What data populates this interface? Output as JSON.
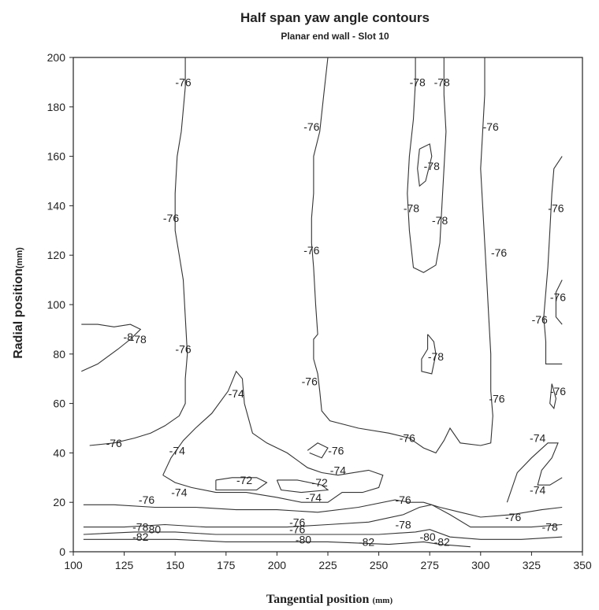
{
  "chart_data": {
    "type": "contour",
    "title": "Half span yaw angle contours",
    "subtitle": "Planar end wall - Slot 10",
    "xlabel_main": "Tangential position",
    "xlabel_unit": "(mm)",
    "ylabel_main": "Radial position",
    "ylabel_unit": "(mm)",
    "xlim": [
      100,
      350
    ],
    "ylim": [
      0,
      200
    ],
    "xticks": [
      100,
      125,
      150,
      175,
      200,
      225,
      250,
      275,
      300,
      325,
      350
    ],
    "yticks": [
      0,
      20,
      40,
      60,
      80,
      100,
      120,
      140,
      160,
      180,
      200
    ],
    "contour_labels": [
      {
        "text": "-76",
        "x": 154,
        "y": 190
      },
      {
        "text": "-76",
        "x": 148,
        "y": 135
      },
      {
        "text": "-76",
        "x": 154,
        "y": 82
      },
      {
        "text": "-76",
        "x": 120,
        "y": 44
      },
      {
        "text": "-74",
        "x": 180,
        "y": 64
      },
      {
        "text": "-74",
        "x": 151,
        "y": 41
      },
      {
        "text": "-74",
        "x": 152,
        "y": 24
      },
      {
        "text": "-72",
        "x": 184,
        "y": 29
      },
      {
        "text": "-72",
        "x": 221,
        "y": 28
      },
      {
        "text": "-74",
        "x": 218,
        "y": 22
      },
      {
        "text": "-74",
        "x": 230,
        "y": 33
      },
      {
        "text": "-76",
        "x": 229,
        "y": 41
      },
      {
        "text": "-76",
        "x": 217,
        "y": 172
      },
      {
        "text": "-76",
        "x": 217,
        "y": 122
      },
      {
        "text": "-76",
        "x": 216,
        "y": 69
      },
      {
        "text": "-78",
        "x": 269,
        "y": 190
      },
      {
        "text": "-78",
        "x": 281,
        "y": 190
      },
      {
        "text": "-78",
        "x": 276,
        "y": 156
      },
      {
        "text": "-78",
        "x": 266,
        "y": 139
      },
      {
        "text": "-78",
        "x": 280,
        "y": 134
      },
      {
        "text": "-78",
        "x": 278,
        "y": 79
      },
      {
        "text": "-76",
        "x": 305,
        "y": 172
      },
      {
        "text": "-76",
        "x": 309,
        "y": 121
      },
      {
        "text": "-76",
        "x": 308,
        "y": 62
      },
      {
        "text": "-76",
        "x": 337,
        "y": 139
      },
      {
        "text": "-76",
        "x": 338,
        "y": 103
      },
      {
        "text": "-76",
        "x": 329,
        "y": 94
      },
      {
        "text": "-76",
        "x": 338,
        "y": 65
      },
      {
        "text": "-76",
        "x": 264,
        "y": 46
      },
      {
        "text": "-74",
        "x": 328,
        "y": 46
      },
      {
        "text": "-74",
        "x": 328,
        "y": 25
      },
      {
        "text": "-76",
        "x": 136,
        "y": 21
      },
      {
        "text": "-76",
        "x": 262,
        "y": 21
      },
      {
        "text": "-76",
        "x": 210,
        "y": 12
      },
      {
        "text": "-78",
        "x": 262,
        "y": 11
      },
      {
        "text": "-78",
        "x": 133,
        "y": 10
      },
      {
        "text": "80",
        "x": 140,
        "y": 9
      },
      {
        "text": "-78",
        "x": 334,
        "y": 10
      },
      {
        "text": "-76",
        "x": 316,
        "y": 14
      },
      {
        "text": "-76",
        "x": 210,
        "y": 9
      },
      {
        "text": "-80",
        "x": 213,
        "y": 5
      },
      {
        "text": "-80",
        "x": 274,
        "y": 6
      },
      {
        "text": "-82",
        "x": 281,
        "y": 4
      },
      {
        "text": "-82",
        "x": 244,
        "y": 4
      },
      {
        "text": "-8",
        "x": 127,
        "y": 87
      },
      {
        "text": "-78",
        "x": 132,
        "y": 86
      },
      {
        "text": "-82",
        "x": 133,
        "y": 6
      }
    ],
    "contour_lines": [
      {
        "level": -76,
        "points": [
          [
            155,
            200
          ],
          [
            155,
            188
          ],
          [
            153,
            170
          ],
          [
            151,
            160
          ],
          [
            150,
            145
          ],
          [
            150,
            130
          ],
          [
            152,
            120
          ],
          [
            154,
            110
          ],
          [
            155,
            95
          ],
          [
            156,
            80
          ],
          [
            155,
            70
          ],
          [
            155,
            60
          ],
          [
            152,
            55
          ],
          [
            145,
            51
          ],
          [
            138,
            48
          ],
          [
            130,
            46
          ],
          [
            120,
            44
          ],
          [
            108,
            43
          ]
        ]
      },
      {
        "level": -76,
        "points": [
          [
            225,
            200
          ],
          [
            223,
            185
          ],
          [
            221,
            170
          ],
          [
            218,
            160
          ],
          [
            218,
            145
          ],
          [
            217,
            135
          ],
          [
            217,
            125
          ],
          [
            218,
            115
          ],
          [
            219,
            100
          ],
          [
            220,
            88
          ],
          [
            218,
            86
          ],
          [
            218,
            78
          ],
          [
            220,
            72
          ],
          [
            221,
            65
          ],
          [
            222,
            57
          ],
          [
            226,
            53
          ],
          [
            240,
            50
          ],
          [
            255,
            48
          ],
          [
            265,
            46
          ],
          [
            272,
            42
          ],
          [
            278,
            40
          ],
          [
            282,
            45
          ],
          [
            285,
            50
          ],
          [
            290,
            44
          ],
          [
            300,
            43
          ],
          [
            305,
            44
          ],
          [
            306,
            55
          ],
          [
            305,
            65
          ],
          [
            305,
            80
          ],
          [
            304,
            95
          ],
          [
            303,
            110
          ],
          [
            302,
            125
          ],
          [
            301,
            140
          ],
          [
            300,
            155
          ],
          [
            301,
            170
          ],
          [
            302,
            185
          ],
          [
            302,
            200
          ]
        ]
      },
      {
        "level": -78,
        "points": [
          [
            268,
            200
          ],
          [
            268,
            190
          ],
          [
            267,
            175
          ],
          [
            265,
            160
          ],
          [
            264,
            145
          ],
          [
            265,
            130
          ],
          [
            267,
            115
          ],
          [
            272,
            113
          ],
          [
            278,
            116
          ],
          [
            280,
            125
          ],
          [
            281,
            140
          ],
          [
            282,
            155
          ],
          [
            283,
            170
          ],
          [
            282,
            185
          ],
          [
            282,
            200
          ]
        ]
      },
      {
        "level": -78,
        "points": [
          [
            270,
            163
          ],
          [
            275,
            165
          ],
          [
            276,
            160
          ],
          [
            273,
            150
          ],
          [
            270,
            148
          ],
          [
            269,
            155
          ],
          [
            270,
            163
          ]
        ]
      },
      {
        "level": -78,
        "points": [
          [
            274,
            88
          ],
          [
            277,
            85
          ],
          [
            278,
            80
          ],
          [
            276,
            72
          ],
          [
            271,
            73
          ],
          [
            271,
            78
          ],
          [
            274,
            82
          ],
          [
            274,
            88
          ]
        ]
      },
      {
        "level": -78,
        "points": [
          [
            104,
            92
          ],
          [
            112,
            92
          ],
          [
            120,
            91
          ],
          [
            128,
            92
          ],
          [
            133,
            90
          ],
          [
            128,
            86
          ],
          [
            122,
            82
          ],
          [
            112,
            76
          ],
          [
            104,
            73
          ]
        ]
      },
      {
        "level": -76,
        "points": [
          [
            340,
            160
          ],
          [
            336,
            155
          ],
          [
            335,
            145
          ],
          [
            334,
            130
          ],
          [
            333,
            115
          ],
          [
            332,
            105
          ],
          [
            331,
            95
          ],
          [
            332,
            85
          ],
          [
            332,
            76
          ],
          [
            340,
            76
          ]
        ]
      },
      {
        "level": -76,
        "points": [
          [
            340,
            110
          ],
          [
            337,
            105
          ],
          [
            337,
            95
          ],
          [
            340,
            92
          ]
        ]
      },
      {
        "level": -76,
        "points": [
          [
            335,
            68
          ],
          [
            337,
            62
          ],
          [
            336,
            58
          ],
          [
            334,
            60
          ],
          [
            335,
            68
          ]
        ]
      },
      {
        "level": -74,
        "points": [
          [
            144,
            31
          ],
          [
            148,
            38
          ],
          [
            154,
            45
          ],
          [
            160,
            50
          ],
          [
            168,
            56
          ],
          [
            176,
            65
          ],
          [
            180,
            73
          ],
          [
            183,
            70
          ],
          [
            184,
            60
          ],
          [
            188,
            48
          ],
          [
            195,
            44
          ],
          [
            205,
            40
          ],
          [
            215,
            34
          ],
          [
            222,
            32
          ],
          [
            230,
            31
          ],
          [
            245,
            33
          ],
          [
            252,
            31
          ],
          [
            250,
            26
          ],
          [
            242,
            24
          ],
          [
            232,
            24
          ],
          [
            225,
            20
          ],
          [
            212,
            20
          ],
          [
            200,
            22
          ],
          [
            185,
            24
          ],
          [
            170,
            24
          ],
          [
            158,
            26
          ],
          [
            150,
            28
          ],
          [
            144,
            31
          ]
        ]
      },
      {
        "level": -72,
        "points": [
          [
            170,
            29
          ],
          [
            178,
            30
          ],
          [
            190,
            30
          ],
          [
            195,
            28
          ],
          [
            190,
            25
          ],
          [
            180,
            25
          ],
          [
            170,
            25
          ],
          [
            170,
            29
          ]
        ]
      },
      {
        "level": -72,
        "points": [
          [
            200,
            29
          ],
          [
            210,
            29
          ],
          [
            222,
            27
          ],
          [
            225,
            25
          ],
          [
            212,
            24
          ],
          [
            202,
            25
          ],
          [
            200,
            29
          ]
        ]
      },
      {
        "level": -76,
        "points": [
          [
            215,
            41
          ],
          [
            220,
            44
          ],
          [
            225,
            42
          ],
          [
            222,
            38
          ],
          [
            216,
            40
          ]
        ]
      },
      {
        "level": -74,
        "points": [
          [
            313,
            20
          ],
          [
            318,
            32
          ],
          [
            325,
            38
          ],
          [
            333,
            44
          ],
          [
            338,
            44
          ],
          [
            335,
            38
          ],
          [
            330,
            33
          ],
          [
            328,
            27
          ],
          [
            334,
            27
          ],
          [
            340,
            30
          ]
        ]
      },
      {
        "level": -76,
        "points": [
          [
            105,
            19
          ],
          [
            120,
            19
          ],
          [
            140,
            18
          ],
          [
            160,
            18
          ],
          [
            180,
            17
          ],
          [
            200,
            17
          ],
          [
            220,
            16
          ],
          [
            240,
            18
          ],
          [
            258,
            21
          ],
          [
            265,
            20
          ],
          [
            272,
            20
          ],
          [
            280,
            18
          ],
          [
            290,
            16
          ],
          [
            300,
            14
          ],
          [
            315,
            15
          ],
          [
            330,
            17
          ],
          [
            340,
            18
          ]
        ]
      },
      {
        "level": -78,
        "points": [
          [
            105,
            10
          ],
          [
            125,
            10
          ],
          [
            145,
            11
          ],
          [
            165,
            10
          ],
          [
            185,
            10
          ],
          [
            205,
            10
          ],
          [
            225,
            11
          ],
          [
            245,
            12
          ],
          [
            262,
            15
          ],
          [
            270,
            18
          ],
          [
            276,
            19
          ],
          [
            285,
            15
          ],
          [
            295,
            10
          ],
          [
            310,
            10
          ],
          [
            325,
            10
          ],
          [
            340,
            11
          ]
        ]
      },
      {
        "level": -80,
        "points": [
          [
            105,
            7
          ],
          [
            130,
            8
          ],
          [
            150,
            8
          ],
          [
            170,
            7
          ],
          [
            190,
            7
          ],
          [
            210,
            7
          ],
          [
            230,
            7
          ],
          [
            250,
            7
          ],
          [
            268,
            8
          ],
          [
            275,
            9
          ],
          [
            285,
            6
          ],
          [
            300,
            5
          ],
          [
            320,
            5
          ],
          [
            340,
            6
          ]
        ]
      },
      {
        "level": -82,
        "points": [
          [
            105,
            5
          ],
          [
            130,
            5
          ],
          [
            150,
            5
          ],
          [
            175,
            4
          ],
          [
            200,
            4
          ],
          [
            225,
            4
          ],
          [
            255,
            3
          ],
          [
            272,
            4
          ],
          [
            280,
            3
          ],
          [
            295,
            2
          ]
        ]
      }
    ]
  }
}
